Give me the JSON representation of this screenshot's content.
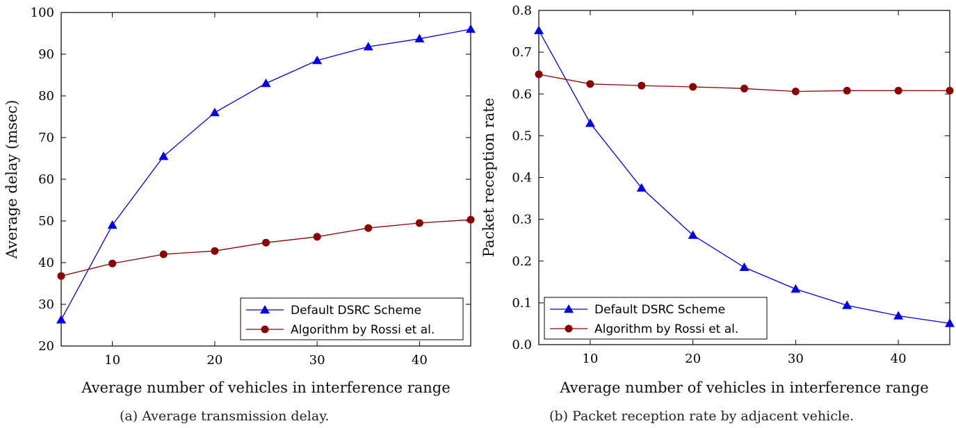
{
  "colors": {
    "series1": "#0000ee",
    "series2": "#8b0000",
    "axis": "#000000"
  },
  "charts": [
    {
      "caption": "(a) Average transmission delay.",
      "chart_data": {
        "type": "line",
        "xlabel": "Average number of vehicles in interference range",
        "ylabel": "Average delay (msec)",
        "xlim": [
          5,
          45
        ],
        "ylim": [
          20,
          100
        ],
        "x_ticks": [
          "10",
          "20",
          "30",
          "40"
        ],
        "y_ticks": [
          "20",
          "30",
          "40",
          "50",
          "60",
          "70",
          "80",
          "90",
          "100"
        ],
        "grid": false,
        "legend_position": "bottom-right",
        "x": [
          5,
          10,
          15,
          20,
          25,
          30,
          35,
          40,
          45
        ],
        "series": [
          {
            "name": "Default DSRC Scheme",
            "marker": "triangle",
            "color": "#0000ee",
            "values": [
              26.3,
              49,
              65.5,
              76,
              83,
              88.5,
              91.8,
              93.7,
              96
            ]
          },
          {
            "name": "Algorithm by Rossi et al.",
            "marker": "circle",
            "color": "#8b0000",
            "values": [
              36.8,
              39.8,
              42,
              42.8,
              44.8,
              46.2,
              48.3,
              49.5,
              50.3
            ]
          }
        ]
      }
    },
    {
      "caption": "(b) Packet reception rate by adjacent vehicle.",
      "chart_data": {
        "type": "line",
        "xlabel": "Average number of vehicles in interference range",
        "ylabel": "Packet reception rate",
        "xlim": [
          5,
          45
        ],
        "ylim": [
          0,
          0.8
        ],
        "x_ticks": [
          "10",
          "20",
          "30",
          "40"
        ],
        "y_ticks": [
          "0.0",
          "0.1",
          "0.2",
          "0.3",
          "0.4",
          "0.5",
          "0.6",
          "0.7",
          "0.8"
        ],
        "grid": false,
        "legend_position": "bottom-left",
        "x": [
          5,
          10,
          15,
          20,
          25,
          30,
          35,
          40,
          45
        ],
        "series": [
          {
            "name": "Default DSRC Scheme",
            "marker": "triangle",
            "color": "#0000ee",
            "values": [
              0.752,
              0.53,
              0.375,
              0.262,
              0.185,
              0.133,
              0.094,
              0.069,
              0.051
            ]
          },
          {
            "name": "Algorithm by Rossi et al.",
            "marker": "circle",
            "color": "#8b0000",
            "values": [
              0.647,
              0.624,
              0.62,
              0.617,
              0.613,
              0.606,
              0.608,
              0.608,
              0.608
            ]
          }
        ]
      }
    }
  ]
}
